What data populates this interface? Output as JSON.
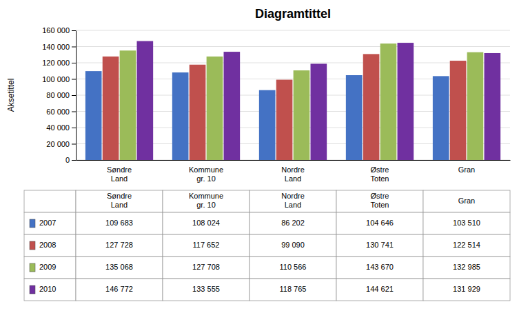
{
  "chart_data": {
    "type": "bar",
    "title": "Diagramtittel",
    "ylabel": "Aksetittel",
    "categories": [
      "Søndre\nLand",
      "Kommune\ngr. 10",
      "Nordre\nLand",
      "Østre\nToten",
      "Gran"
    ],
    "series": [
      {
        "name": "2007",
        "color": "#4472C4",
        "values": [
          109683,
          108024,
          86202,
          104646,
          103510
        ],
        "value_labels": [
          "109 683",
          "108 024",
          "86 202",
          "104 646",
          "103 510"
        ]
      },
      {
        "name": "2008",
        "color": "#C0504D",
        "values": [
          127728,
          117652,
          99090,
          130741,
          122514
        ],
        "value_labels": [
          "127 728",
          "117 652",
          "99 090",
          "130 741",
          "122 514"
        ]
      },
      {
        "name": "2009",
        "color": "#9BBB59",
        "values": [
          135068,
          127708,
          110566,
          143670,
          132985
        ],
        "value_labels": [
          "135 068",
          "127 708",
          "110 566",
          "143 670",
          "132 985"
        ]
      },
      {
        "name": "2010",
        "color": "#7030A0",
        "values": [
          146772,
          133555,
          118765,
          144621,
          131929
        ],
        "value_labels": [
          "146 772",
          "133 555",
          "118 765",
          "144 621",
          "131 929"
        ]
      }
    ],
    "ylim": [
      0,
      160000
    ],
    "yticks": [
      0,
      {
        "value": 20000,
        "label": "20 000"
      },
      {
        "value": 40000,
        "label": "40 000"
      },
      {
        "value": 60000,
        "label": "60 000"
      },
      {
        "value": 80000,
        "label": "80 000"
      },
      {
        "value": 100000,
        "label": "100 000"
      },
      {
        "value": 120000,
        "label": "120 000"
      },
      {
        "value": 140000,
        "label": "140 000"
      },
      {
        "value": 160000,
        "label": "160 000"
      }
    ],
    "grid": true
  }
}
